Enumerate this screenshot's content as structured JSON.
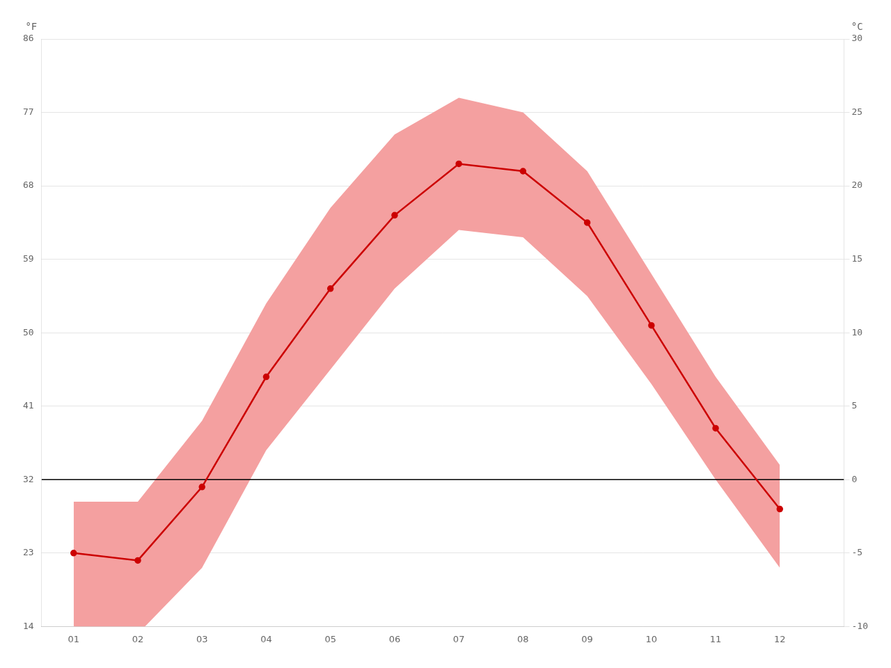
{
  "chart_data": {
    "type": "line",
    "x": [
      1,
      2,
      3,
      4,
      5,
      6,
      7,
      8,
      9,
      10,
      11,
      12
    ],
    "xlim": [
      0.5,
      13.0
    ],
    "xticks": [
      {
        "value": 1,
        "label": "01"
      },
      {
        "value": 2,
        "label": "02"
      },
      {
        "value": 3,
        "label": "03"
      },
      {
        "value": 4,
        "label": "04"
      },
      {
        "value": 5,
        "label": "05"
      },
      {
        "value": 6,
        "label": "06"
      },
      {
        "value": 7,
        "label": "07"
      },
      {
        "value": 8,
        "label": "08"
      },
      {
        "value": 9,
        "label": "09"
      },
      {
        "value": 10,
        "label": "10"
      },
      {
        "value": 11,
        "label": "11"
      },
      {
        "value": 12,
        "label": "12"
      }
    ],
    "ylabel": "°C",
    "ylim": [
      -10,
      30
    ],
    "yticks": [
      -10,
      -5,
      0,
      5,
      10,
      15,
      20,
      25,
      30
    ],
    "y2label": "°F",
    "y2lim": [
      14,
      86
    ],
    "y2ticks": [
      14,
      23,
      32,
      41,
      50,
      59,
      68,
      77,
      86
    ],
    "grid": "y",
    "reference_lines": [
      {
        "y": 0,
        "color": "#000000"
      }
    ],
    "series": [
      {
        "type": "range",
        "color": "#f4a0a0",
        "low": [
          -10.0,
          -10.5,
          -6.0,
          2.0,
          7.5,
          13.0,
          17.0,
          16.5,
          12.5,
          6.5,
          0.0,
          -6.0
        ],
        "high": [
          -1.5,
          -1.5,
          4.0,
          12.0,
          18.5,
          23.5,
          26.0,
          25.0,
          21.0,
          14.0,
          7.0,
          1.0
        ]
      },
      {
        "type": "line",
        "color": "#cc0000",
        "marker": "circle",
        "values": [
          -5.0,
          -5.5,
          -0.5,
          7.0,
          13.0,
          18.0,
          21.5,
          21.0,
          17.5,
          10.5,
          3.5,
          -2.0
        ]
      }
    ]
  }
}
